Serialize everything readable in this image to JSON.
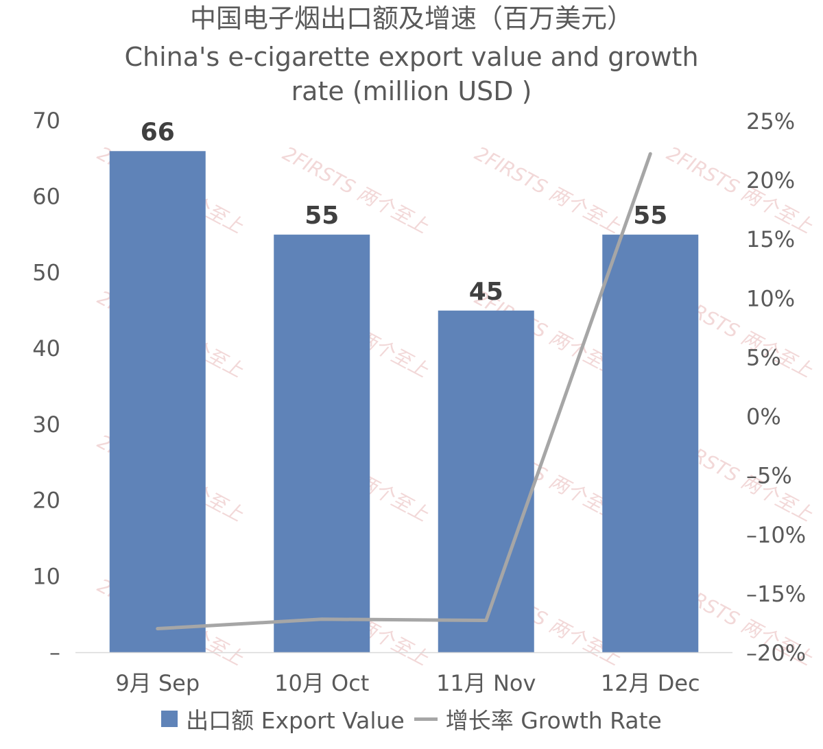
{
  "chart_data": {
    "type": "bar",
    "title": "中国电子烟出口额及增速（百万美元）",
    "subtitle_line1": "China's e-cigarette export value and growth",
    "subtitle_line2": "rate (million USD )",
    "categories": [
      "9月 Sep",
      "10月 Oct",
      "11月 Nov",
      "12月 Dec"
    ],
    "series": [
      {
        "name": "出口额 Export Value",
        "type": "bar",
        "axis": "left",
        "values": [
          66,
          55,
          45,
          55
        ],
        "color": "#5f83b8"
      },
      {
        "name": "增长率 Growth Rate",
        "type": "line",
        "axis": "right",
        "values": [
          -18.0,
          -17.2,
          -17.3,
          22.2
        ],
        "color": "#a6a6a6"
      }
    ],
    "bar_labels": [
      "66",
      "55",
      "45",
      "55"
    ],
    "y_left": {
      "min": 0,
      "max": 70,
      "ticks": [
        0,
        10,
        20,
        30,
        40,
        50,
        60,
        70
      ],
      "tick_labels": [
        "–",
        "10",
        "20",
        "30",
        "40",
        "50",
        "60",
        "70"
      ]
    },
    "y_right": {
      "min": -20,
      "max": 25,
      "ticks": [
        -20,
        -15,
        -10,
        -5,
        0,
        5,
        10,
        15,
        20,
        25
      ],
      "tick_labels": [
        "–20%",
        "–15%",
        "–10%",
        "–5%",
        "0%",
        "5%",
        "10%",
        "15%",
        "20%",
        "25%"
      ]
    },
    "grid": false,
    "legend_position": "bottom",
    "watermark": "2FIRSTS 两个至上"
  }
}
